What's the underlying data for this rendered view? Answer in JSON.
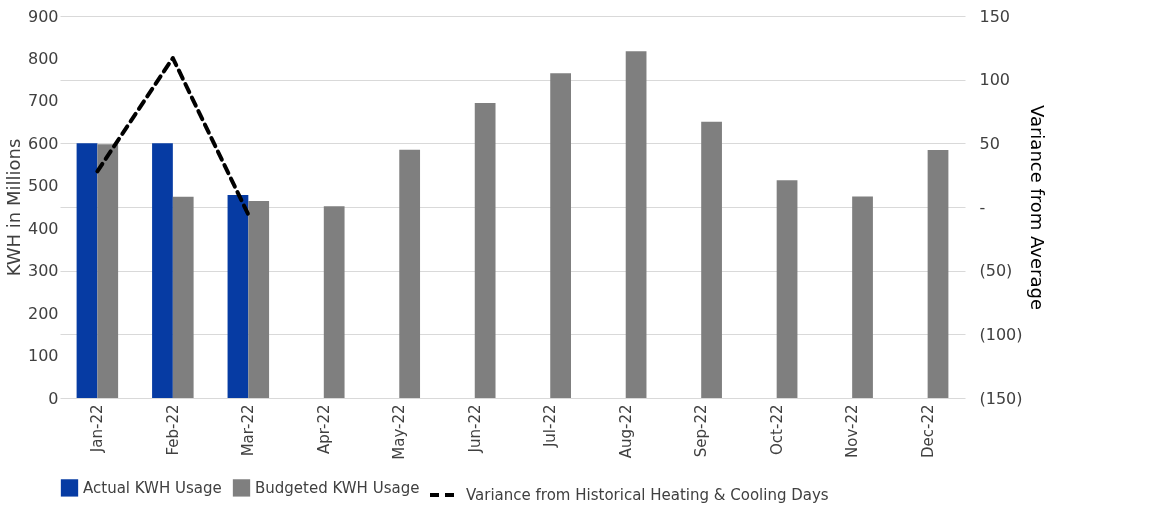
{
  "chart_data": {
    "type": "bar",
    "ylabel": "KWH in Millions",
    "y2label": "Variance from Average",
    "categories": [
      "Jan-22",
      "Feb-22",
      "Mar-22",
      "Apr-22",
      "May-22",
      "Jun-22",
      "Jul-22",
      "Aug-22",
      "Sep-22",
      "Oct-22",
      "Nov-22",
      "Dec-22"
    ],
    "series": [
      {
        "name": "Actual KWH Usage",
        "color": "#063ba3",
        "values": [
          600,
          600,
          478,
          null,
          null,
          null,
          null,
          null,
          null,
          null,
          null,
          null
        ]
      },
      {
        "name": "Budgeted KWH Usage",
        "color": "#7f7f7f",
        "values": [
          598,
          474,
          464,
          452,
          585,
          695,
          765,
          817,
          651,
          513,
          475,
          584
        ]
      },
      {
        "name": "Variance from Historical Heating & Cooling Days",
        "type": "line",
        "axis": "y2",
        "color": "#000000",
        "line_style": "dashed",
        "values": [
          28,
          117,
          -6,
          null,
          null,
          null,
          null,
          null,
          null,
          null,
          null,
          null
        ]
      }
    ],
    "ylim": [
      0,
      900
    ],
    "yticks": [
      0,
      100,
      200,
      300,
      400,
      500,
      600,
      700,
      800,
      900
    ],
    "y2lim": [
      -150,
      150
    ],
    "y2ticks": [
      {
        "value": -150,
        "label": "(150)"
      },
      {
        "value": -100,
        "label": "(100)"
      },
      {
        "value": -50,
        "label": "(50)"
      },
      {
        "value": 0,
        "label": "-"
      },
      50,
      100,
      150
    ],
    "grid": "y2",
    "legend": "bottom",
    "marker": "none"
  }
}
